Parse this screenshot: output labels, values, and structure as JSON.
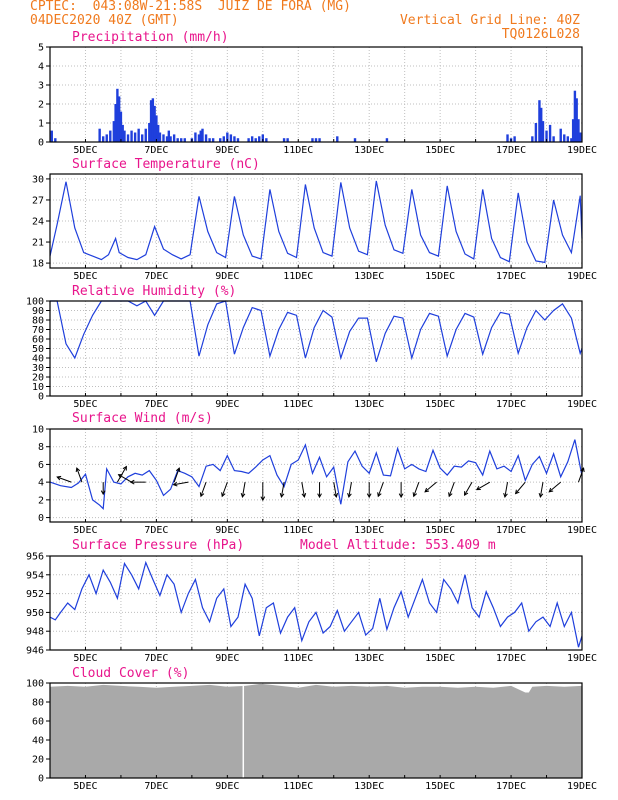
{
  "header": {
    "line1": "CPTEC:  043:08W-21:58S  JUIZ DE FORA (MG)",
    "line2": "04DEC2020 40Z (GMT)",
    "right1": "Vertical Grid Line: 40Z",
    "right2": "TQ0126L028"
  },
  "colors": {
    "series": "#1f3fdc",
    "bars": "#1f3fdc",
    "title": "#e8158c",
    "header": "#f07a1e",
    "cloud": "#a9a9a9",
    "grid": "#bfbfbf"
  },
  "chart_data": [
    {
      "type": "bar",
      "title": "Precipitation (mm/h)",
      "x_ticks": [
        "5DEC",
        "7DEC",
        "9DEC",
        "11DEC",
        "13DEC",
        "15DEC",
        "17DEC",
        "19DEC"
      ],
      "xlim_days": [
        4.0,
        19.0
      ],
      "ylim": [
        0,
        5
      ],
      "y_ticks": [
        0,
        1,
        2,
        3,
        4,
        5
      ],
      "x_day": [
        4.05,
        4.15,
        5.4,
        5.5,
        5.6,
        5.7,
        5.8,
        5.85,
        5.9,
        5.95,
        6.0,
        6.05,
        6.1,
        6.2,
        6.3,
        6.4,
        6.5,
        6.6,
        6.7,
        6.8,
        6.85,
        6.9,
        6.95,
        7.0,
        7.05,
        7.1,
        7.2,
        7.3,
        7.35,
        7.4,
        7.5,
        7.6,
        7.7,
        7.8,
        8.0,
        8.1,
        8.2,
        8.25,
        8.3,
        8.4,
        8.5,
        8.6,
        8.8,
        8.9,
        9.0,
        9.1,
        9.2,
        9.3,
        9.6,
        9.7,
        9.8,
        9.9,
        10.0,
        10.1,
        10.6,
        10.7,
        11.4,
        11.5,
        11.6,
        12.1,
        12.6,
        13.5,
        16.9,
        17.0,
        17.1,
        17.6,
        17.7,
        17.8,
        17.85,
        17.9,
        18.0,
        18.1,
        18.2,
        18.4,
        18.5,
        18.6,
        18.7,
        18.75,
        18.8,
        18.85,
        18.9,
        18.95
      ],
      "values": [
        0.6,
        0.2,
        0.7,
        0.3,
        0.4,
        0.6,
        1.1,
        2.0,
        2.8,
        2.4,
        1.6,
        0.9,
        0.6,
        0.4,
        0.6,
        0.5,
        0.7,
        0.4,
        0.7,
        1.0,
        2.2,
        2.3,
        1.9,
        1.4,
        0.9,
        0.5,
        0.4,
        0.3,
        0.6,
        0.3,
        0.4,
        0.2,
        0.2,
        0.2,
        0.2,
        0.5,
        0.4,
        0.6,
        0.7,
        0.4,
        0.2,
        0.2,
        0.2,
        0.3,
        0.5,
        0.4,
        0.3,
        0.2,
        0.2,
        0.3,
        0.2,
        0.3,
        0.4,
        0.2,
        0.2,
        0.2,
        0.2,
        0.2,
        0.2,
        0.3,
        0.2,
        0.2,
        0.4,
        0.2,
        0.3,
        0.3,
        1.0,
        2.2,
        1.8,
        1.1,
        0.6,
        0.9,
        0.3,
        0.7,
        0.4,
        0.3,
        0.2,
        1.2,
        2.7,
        2.3,
        1.2,
        0.5
      ]
    },
    {
      "type": "line",
      "title": "Surface Temperature (nC)",
      "x_ticks": [
        "5DEC",
        "7DEC",
        "9DEC",
        "11DEC",
        "13DEC",
        "15DEC",
        "17DEC",
        "19DEC"
      ],
      "xlim_days": [
        4.0,
        19.0
      ],
      "ylim": [
        17.3,
        30.7
      ],
      "y_ticks": [
        18,
        21,
        24,
        27,
        30
      ],
      "x_day": [
        4.0,
        4.2,
        4.45,
        4.7,
        4.95,
        5.2,
        5.45,
        5.65,
        5.85,
        5.95,
        6.2,
        6.45,
        6.7,
        6.95,
        7.2,
        7.45,
        7.7,
        7.95,
        8.2,
        8.45,
        8.7,
        8.95,
        9.2,
        9.45,
        9.7,
        9.95,
        10.2,
        10.45,
        10.7,
        10.95,
        11.2,
        11.45,
        11.7,
        11.95,
        12.2,
        12.45,
        12.7,
        12.95,
        13.2,
        13.45,
        13.7,
        13.95,
        14.2,
        14.45,
        14.7,
        14.95,
        15.2,
        15.45,
        15.7,
        15.95,
        16.2,
        16.45,
        16.7,
        16.95,
        17.2,
        17.45,
        17.7,
        17.95,
        18.2,
        18.45,
        18.7,
        18.95,
        19.0
      ],
      "values": [
        19.0,
        23.5,
        29.6,
        23.0,
        19.5,
        19.0,
        18.5,
        19.2,
        21.5,
        19.5,
        18.8,
        18.5,
        19.2,
        23.2,
        20.0,
        19.2,
        18.6,
        19.2,
        27.5,
        22.5,
        19.5,
        18.8,
        27.5,
        22.0,
        19.0,
        18.6,
        28.5,
        22.5,
        19.4,
        18.8,
        29.2,
        23.0,
        19.5,
        19.0,
        29.5,
        23.0,
        19.7,
        19.2,
        29.7,
        23.4,
        19.9,
        19.4,
        28.5,
        22.0,
        19.5,
        19.0,
        29.0,
        22.5,
        19.3,
        18.6,
        28.5,
        21.5,
        18.8,
        18.2,
        28.0,
        21.0,
        18.3,
        18.1,
        27.0,
        22.0,
        19.5,
        27.6,
        21.5
      ]
    },
    {
      "type": "line",
      "title": "Relative Humidity (%)",
      "x_ticks": [
        "5DEC",
        "7DEC",
        "9DEC",
        "11DEC",
        "13DEC",
        "15DEC",
        "17DEC",
        "19DEC"
      ],
      "xlim_days": [
        4.0,
        19.0
      ],
      "ylim": [
        0,
        100
      ],
      "y_ticks": [
        0,
        10,
        20,
        30,
        40,
        50,
        60,
        70,
        80,
        90,
        100
      ],
      "x_day": [
        4.0,
        4.2,
        4.45,
        4.7,
        4.95,
        5.2,
        5.45,
        5.7,
        5.95,
        6.2,
        6.45,
        6.7,
        6.95,
        7.2,
        7.45,
        7.7,
        7.95,
        8.2,
        8.45,
        8.7,
        8.95,
        9.2,
        9.45,
        9.7,
        9.95,
        10.2,
        10.45,
        10.7,
        10.95,
        11.2,
        11.45,
        11.7,
        11.95,
        12.2,
        12.45,
        12.7,
        12.95,
        13.2,
        13.45,
        13.7,
        13.95,
        14.2,
        14.45,
        14.7,
        14.95,
        15.2,
        15.45,
        15.7,
        15.95,
        16.2,
        16.45,
        16.7,
        16.95,
        17.2,
        17.45,
        17.7,
        17.95,
        18.2,
        18.45,
        18.7,
        18.95,
        19.0
      ],
      "values": [
        100,
        100,
        55,
        40,
        65,
        85,
        100,
        100,
        100,
        100,
        95,
        100,
        85,
        100,
        100,
        100,
        100,
        42,
        75,
        97,
        100,
        44,
        72,
        93,
        90,
        42,
        70,
        88,
        85,
        40,
        72,
        90,
        83,
        40,
        68,
        82,
        82,
        36,
        66,
        84,
        82,
        40,
        70,
        87,
        84,
        42,
        70,
        87,
        83,
        44,
        72,
        88,
        86,
        45,
        72,
        90,
        80,
        90,
        97,
        82,
        45,
        50
      ]
    },
    {
      "type": "line",
      "title": "Surface Wind (m/s)",
      "x_ticks": [
        "5DEC",
        "7DEC",
        "9DEC",
        "11DEC",
        "13DEC",
        "15DEC",
        "17DEC",
        "19DEC"
      ],
      "xlim_days": [
        4.0,
        19.0
      ],
      "ylim": [
        -0.5,
        10
      ],
      "y_ticks": [
        0,
        2,
        4,
        6,
        8,
        10
      ],
      "x_day": [
        4.0,
        4.3,
        4.6,
        4.8,
        5.0,
        5.2,
        5.4,
        5.5,
        5.6,
        5.8,
        6.0,
        6.2,
        6.4,
        6.6,
        6.8,
        7.0,
        7.2,
        7.4,
        7.6,
        7.8,
        8.0,
        8.2,
        8.4,
        8.6,
        8.8,
        9.0,
        9.2,
        9.4,
        9.6,
        9.8,
        10.0,
        10.2,
        10.4,
        10.6,
        10.8,
        11.0,
        11.2,
        11.4,
        11.6,
        11.8,
        12.0,
        12.2,
        12.4,
        12.6,
        12.8,
        13.0,
        13.2,
        13.4,
        13.6,
        13.8,
        14.0,
        14.2,
        14.4,
        14.6,
        14.8,
        15.0,
        15.2,
        15.4,
        15.6,
        15.8,
        16.0,
        16.2,
        16.4,
        16.6,
        16.8,
        17.0,
        17.2,
        17.4,
        17.6,
        17.8,
        18.0,
        18.2,
        18.4,
        18.6,
        18.8,
        19.0
      ],
      "values": [
        4.0,
        3.6,
        3.4,
        3.9,
        4.9,
        2.0,
        1.4,
        1.0,
        5.5,
        4.0,
        3.8,
        4.6,
        5.0,
        4.8,
        5.3,
        4.2,
        2.5,
        3.2,
        5.3,
        5.0,
        4.6,
        3.5,
        5.8,
        6.0,
        5.3,
        7.0,
        5.3,
        5.2,
        5.0,
        5.7,
        6.5,
        7.0,
        4.8,
        3.5,
        6.0,
        6.5,
        8.2,
        5.0,
        6.8,
        4.6,
        5.7,
        1.5,
        6.3,
        7.5,
        5.8,
        5.0,
        7.3,
        4.8,
        4.7,
        7.8,
        5.5,
        6.0,
        5.5,
        5.2,
        7.6,
        5.6,
        4.8,
        5.8,
        5.7,
        6.4,
        6.2,
        4.8,
        7.5,
        5.5,
        5.8,
        5.2,
        7.0,
        4.2,
        6.0,
        6.9,
        5.0,
        7.2,
        4.6,
        6.3,
        8.8,
        4.7
      ],
      "arrows_x_day": [
        4.6,
        4.9,
        5.5,
        5.9,
        6.3,
        6.7,
        7.5,
        7.9,
        8.4,
        9.0,
        9.5,
        10.0,
        10.6,
        11.1,
        11.6,
        12.0,
        12.5,
        13.0,
        13.4,
        13.9,
        14.4,
        14.9,
        15.4,
        15.9,
        16.4,
        16.9,
        17.4,
        17.9,
        18.4,
        18.9
      ],
      "arrows_dir_deg": [
        290,
        340,
        180,
        30,
        300,
        270,
        20,
        260,
        200,
        200,
        190,
        180,
        190,
        170,
        180,
        170,
        190,
        180,
        200,
        180,
        200,
        230,
        200,
        210,
        240,
        190,
        220,
        190,
        230,
        20
      ],
      "arrows_speed": [
        3,
        3,
        2,
        4,
        3,
        3,
        3,
        3,
        3,
        3,
        3,
        4,
        3,
        3,
        3,
        3,
        3,
        3,
        3,
        3,
        3,
        3,
        3,
        3,
        3,
        3,
        3,
        3,
        3,
        3
      ]
    },
    {
      "type": "line",
      "title": "Surface Pressure (hPa)",
      "annotation": "Model Altitude: 553.409  m",
      "x_ticks": [
        "5DEC",
        "7DEC",
        "9DEC",
        "11DEC",
        "13DEC",
        "15DEC",
        "17DEC",
        "19DEC"
      ],
      "xlim_days": [
        4.0,
        19.0
      ],
      "ylim": [
        946,
        956
      ],
      "y_ticks": [
        946,
        948,
        950,
        952,
        954,
        956
      ],
      "x_day": [
        4.0,
        4.15,
        4.3,
        4.5,
        4.7,
        4.9,
        5.1,
        5.3,
        5.5,
        5.7,
        5.9,
        6.1,
        6.3,
        6.5,
        6.7,
        6.9,
        7.1,
        7.3,
        7.5,
        7.7,
        7.9,
        8.1,
        8.3,
        8.5,
        8.7,
        8.9,
        9.1,
        9.3,
        9.5,
        9.7,
        9.9,
        10.1,
        10.3,
        10.5,
        10.7,
        10.9,
        11.1,
        11.3,
        11.5,
        11.7,
        11.9,
        12.1,
        12.3,
        12.5,
        12.7,
        12.9,
        13.1,
        13.3,
        13.5,
        13.7,
        13.9,
        14.1,
        14.3,
        14.5,
        14.7,
        14.9,
        15.1,
        15.3,
        15.5,
        15.7,
        15.9,
        16.1,
        16.3,
        16.5,
        16.7,
        16.9,
        17.1,
        17.3,
        17.5,
        17.7,
        17.9,
        18.1,
        18.3,
        18.5,
        18.7,
        18.9,
        19.0
      ],
      "values": [
        949.5,
        949.2,
        950.0,
        951.0,
        950.3,
        952.5,
        954.0,
        952.0,
        954.5,
        953.2,
        951.5,
        955.2,
        954.0,
        952.5,
        955.3,
        953.5,
        951.8,
        954.0,
        953.0,
        950.0,
        952.0,
        953.5,
        950.5,
        949.0,
        951.5,
        952.5,
        948.5,
        949.5,
        953.0,
        951.5,
        947.5,
        950.5,
        951.0,
        947.8,
        949.5,
        950.5,
        947.0,
        949.0,
        950.0,
        947.8,
        948.5,
        950.2,
        948.0,
        949.0,
        950.0,
        947.6,
        948.3,
        951.5,
        948.2,
        950.5,
        952.2,
        949.5,
        951.5,
        953.5,
        951.0,
        950.0,
        953.5,
        952.5,
        951.0,
        954.0,
        950.5,
        949.5,
        952.2,
        950.5,
        948.5,
        949.5,
        950.0,
        951.0,
        948.0,
        949.0,
        949.5,
        948.5,
        951.0,
        948.5,
        950.0,
        946.3,
        947.5
      ]
    },
    {
      "type": "area",
      "title": "Cloud Cover (%)",
      "x_ticks": [
        "5DEC",
        "7DEC",
        "9DEC",
        "11DEC",
        "13DEC",
        "15DEC",
        "17DEC",
        "19DEC"
      ],
      "xlim_days": [
        4.0,
        19.0
      ],
      "ylim": [
        0,
        100
      ],
      "y_ticks": [
        0,
        20,
        40,
        60,
        80,
        100
      ],
      "x_day": [
        4.0,
        4.5,
        5.0,
        5.5,
        6.0,
        6.5,
        7.0,
        7.5,
        8.0,
        8.5,
        9.0,
        9.5,
        9.9,
        10.0,
        10.5,
        11.0,
        11.5,
        12.0,
        12.5,
        13.0,
        13.5,
        14.0,
        14.5,
        15.0,
        15.5,
        16.0,
        16.5,
        17.0,
        17.4,
        17.5,
        17.6,
        18.0,
        18.5,
        19.0
      ],
      "values": [
        96,
        97,
        96,
        98,
        97,
        96,
        95,
        96,
        97,
        98,
        96,
        97,
        99,
        99,
        97,
        95,
        98,
        96,
        97,
        96,
        97,
        95,
        96,
        96,
        95,
        96,
        95,
        97,
        90,
        90,
        96,
        97,
        96,
        97
      ],
      "gap_x_day": 9.45
    }
  ]
}
